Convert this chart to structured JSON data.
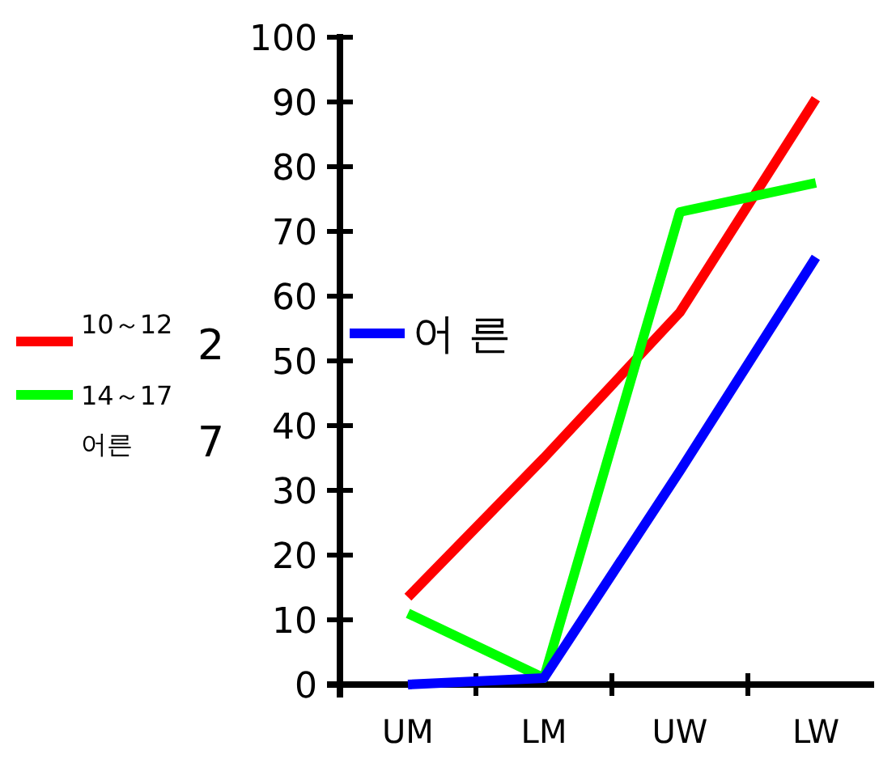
{
  "chart_data": {
    "type": "line",
    "categories": [
      "UM",
      "LM",
      "UW",
      "LW"
    ],
    "series": [
      {
        "name": "10～12",
        "color": "#ff0000",
        "values": [
          13.5,
          35,
          57.5,
          90.5
        ]
      },
      {
        "name": "14～17",
        "color": "#00ff00",
        "values": [
          11,
          1,
          73,
          77.5
        ]
      },
      {
        "name": "어 른",
        "color": "#0000ff",
        "values": [
          0,
          1,
          33,
          66
        ]
      }
    ],
    "ylim": [
      0,
      100
    ],
    "yticks": [
      0,
      10,
      20,
      30,
      40,
      50,
      60,
      70,
      80,
      90,
      100
    ],
    "grid": false,
    "legend": "left",
    "marker": "none",
    "line_style": "solid",
    "annotations": [
      "2",
      "7",
      "어른"
    ]
  }
}
